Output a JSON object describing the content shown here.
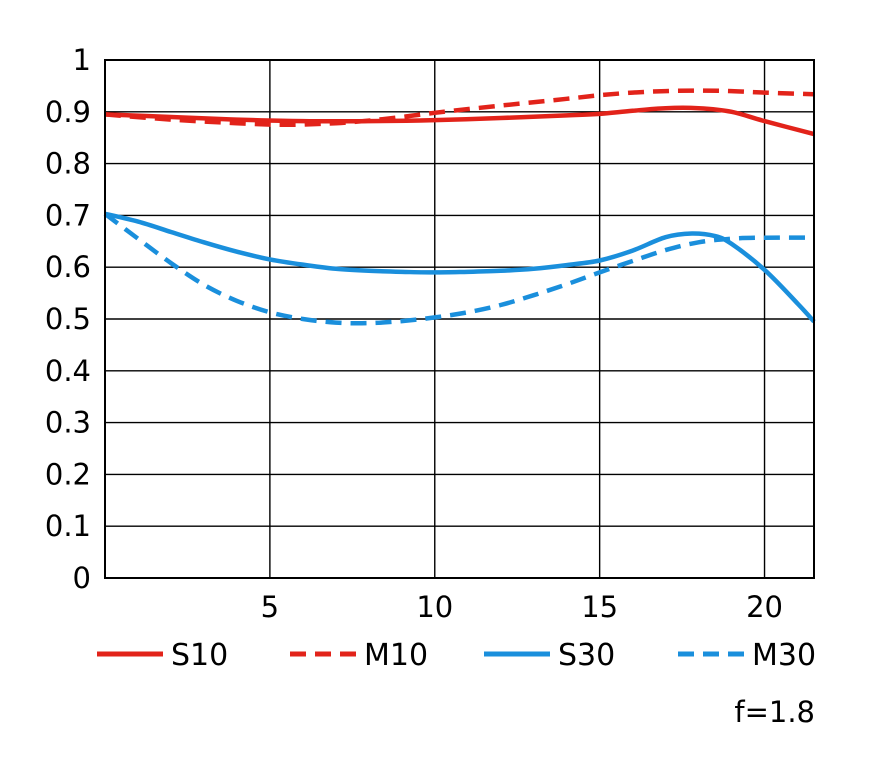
{
  "chart_data": {
    "type": "line",
    "xlim": [
      0,
      21.5
    ],
    "ylim": [
      0,
      1
    ],
    "x_ticks": [
      "5",
      "10",
      "15",
      "20"
    ],
    "x_tick_values": [
      5,
      10,
      15,
      20
    ],
    "y_ticks": [
      "0",
      "0.1",
      "0.2",
      "0.3",
      "0.4",
      "0.5",
      "0.6",
      "0.7",
      "0.8",
      "0.9",
      "1"
    ],
    "y_tick_values": [
      0,
      0.1,
      0.2,
      0.3,
      0.4,
      0.5,
      0.6,
      0.7,
      0.8,
      0.9,
      1
    ],
    "grid": true,
    "legend_position": "bottom",
    "annotation": "f=1.8",
    "series": [
      {
        "name": "S10",
        "color": "#e2231a",
        "dashed": false,
        "points": [
          [
            0,
            0.895
          ],
          [
            2,
            0.89
          ],
          [
            4,
            0.885
          ],
          [
            6,
            0.882
          ],
          [
            8,
            0.882
          ],
          [
            10,
            0.884
          ],
          [
            12,
            0.888
          ],
          [
            14,
            0.893
          ],
          [
            15,
            0.896
          ],
          [
            16,
            0.902
          ],
          [
            17,
            0.907
          ],
          [
            18,
            0.907
          ],
          [
            19,
            0.9
          ],
          [
            20,
            0.882
          ],
          [
            21.5,
            0.857
          ]
        ]
      },
      {
        "name": "M10",
        "color": "#e2231a",
        "dashed": true,
        "points": [
          [
            0,
            0.895
          ],
          [
            2,
            0.885
          ],
          [
            4,
            0.878
          ],
          [
            5.5,
            0.875
          ],
          [
            7,
            0.878
          ],
          [
            8,
            0.883
          ],
          [
            9,
            0.89
          ],
          [
            10,
            0.898
          ],
          [
            12,
            0.912
          ],
          [
            14,
            0.925
          ],
          [
            15,
            0.932
          ],
          [
            16,
            0.937
          ],
          [
            17,
            0.94
          ],
          [
            18,
            0.941
          ],
          [
            19,
            0.94
          ],
          [
            20,
            0.937
          ],
          [
            21.5,
            0.934
          ]
        ]
      },
      {
        "name": "S30",
        "color": "#1a8fdc",
        "dashed": false,
        "points": [
          [
            0,
            0.703
          ],
          [
            1,
            0.688
          ],
          [
            2,
            0.668
          ],
          [
            3,
            0.648
          ],
          [
            4,
            0.63
          ],
          [
            5,
            0.615
          ],
          [
            6,
            0.605
          ],
          [
            7,
            0.597
          ],
          [
            8,
            0.593
          ],
          [
            9,
            0.591
          ],
          [
            10,
            0.59
          ],
          [
            11,
            0.591
          ],
          [
            12,
            0.593
          ],
          [
            13,
            0.597
          ],
          [
            14,
            0.604
          ],
          [
            15,
            0.613
          ],
          [
            16,
            0.632
          ],
          [
            17,
            0.658
          ],
          [
            17.8,
            0.665
          ],
          [
            18.5,
            0.66
          ],
          [
            19,
            0.645
          ],
          [
            20,
            0.595
          ],
          [
            21,
            0.53
          ],
          [
            21.5,
            0.495
          ]
        ]
      },
      {
        "name": "M30",
        "color": "#1a8fdc",
        "dashed": true,
        "points": [
          [
            0,
            0.703
          ],
          [
            1,
            0.655
          ],
          [
            2,
            0.608
          ],
          [
            3,
            0.566
          ],
          [
            4,
            0.535
          ],
          [
            5,
            0.513
          ],
          [
            6,
            0.5
          ],
          [
            7,
            0.493
          ],
          [
            8,
            0.492
          ],
          [
            9,
            0.496
          ],
          [
            10,
            0.503
          ],
          [
            11,
            0.513
          ],
          [
            12,
            0.527
          ],
          [
            13,
            0.546
          ],
          [
            14,
            0.567
          ],
          [
            15,
            0.59
          ],
          [
            16,
            0.612
          ],
          [
            17,
            0.633
          ],
          [
            18,
            0.648
          ],
          [
            19,
            0.655
          ],
          [
            20,
            0.657
          ],
          [
            21.5,
            0.657
          ]
        ]
      }
    ]
  }
}
